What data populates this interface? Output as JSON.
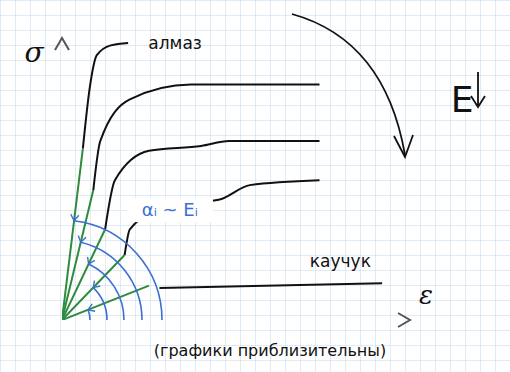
{
  "chart_data": {
    "type": "line",
    "x_label": "ε",
    "y_label": "σ",
    "caption": "(графики приблизительны)",
    "xlim": [
      0,
      100
    ],
    "ylim": [
      0,
      115
    ],
    "tick_labels": false,
    "series": [
      {
        "color": "#2e8b3e",
        "x": [
          0,
          6
        ],
        "values": [
          0,
          70
        ]
      },
      {
        "color": "#111111",
        "x": [
          6,
          8,
          10,
          14,
          19
        ],
        "values": [
          70,
          95,
          108,
          112,
          113
        ]
      },
      {
        "color": "#2e8b3e",
        "x": [
          0,
          9
        ],
        "values": [
          0,
          53
        ]
      },
      {
        "color": "#111111",
        "x": [
          9,
          11,
          19.5,
          37,
          74
        ],
        "values": [
          53,
          73,
          90,
          96,
          96
        ]
      },
      {
        "color": "#2e8b3e",
        "x": [
          0,
          12.4
        ],
        "values": [
          0,
          37
        ]
      },
      {
        "color": "#111111",
        "x": [
          12.4,
          15.2,
          25,
          40,
          48,
          74
        ],
        "values": [
          37,
          57,
          69,
          71,
          73,
          73
        ]
      },
      {
        "color": "#2e8b3e",
        "x": [
          0,
          18
        ],
        "values": [
          0,
          26.5
        ]
      },
      {
        "color": "#111111",
        "x": [
          18,
          19.5,
          31,
          45,
          54,
          74
        ],
        "values": [
          26.5,
          37,
          47,
          49,
          55,
          57
        ]
      },
      {
        "color": "#2e8b3e",
        "x": [
          0,
          25
        ],
        "values": [
          0,
          14
        ]
      },
      {
        "color": "#111111",
        "x": [
          28,
          92
        ],
        "values": [
          13,
          15
        ]
      }
    ],
    "annotations": [
      {
        "text": "алмаз",
        "x": 32.5,
        "y": 113,
        "color": "#111111"
      },
      {
        "text": "каучук",
        "x": 80,
        "y": 24,
        "color": "#111111"
      },
      {
        "text": "αᵢ ~ Eᵢ",
        "x": 31,
        "y": 44,
        "color": "#3b6fd4"
      },
      {
        "text": "E",
        "x": 115,
        "y": 90,
        "color": "#111111"
      }
    ]
  }
}
